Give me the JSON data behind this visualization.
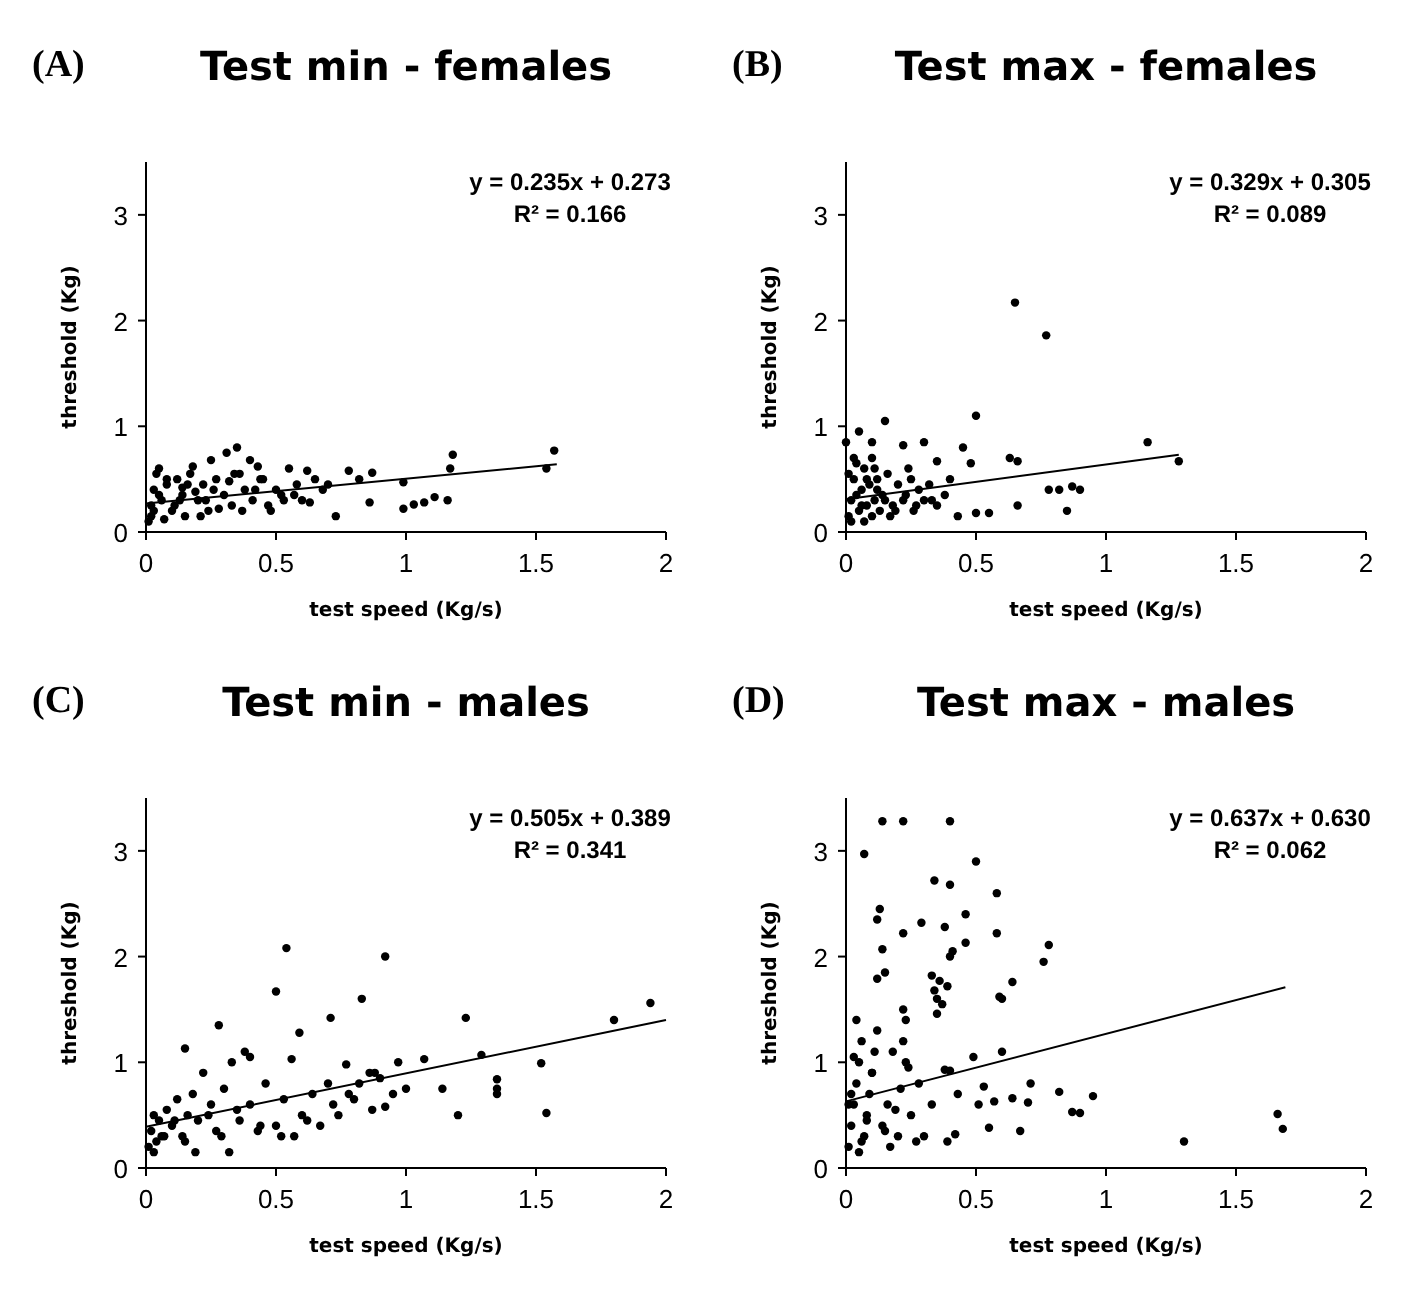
{
  "chart_data": [
    {
      "type": "scatter",
      "title": "Test min - females",
      "xlabel": "test speed  (Kg/s)",
      "ylabel": "threshold  (Kg)",
      "xlim": [
        0,
        2
      ],
      "ylim": [
        0,
        3.5
      ],
      "xticks": [
        0,
        0.5,
        1,
        1.5,
        2
      ],
      "yticks": [
        0,
        1,
        2,
        3
      ],
      "marker": "circle",
      "annotations": [
        "(A)",
        "y = 0.235x + 0.273",
        "R² = 0.166"
      ],
      "series": [
        {
          "type": "scatter",
          "color": "#000000",
          "x": [
            0.73,
            0.78,
            0.82,
            0.86,
            0.87,
            0.99,
            0.99,
            1.03,
            1.07,
            1.11,
            1.16,
            1.17,
            1.18,
            1.54,
            1.57,
            0.35,
            0.31,
            0.25,
            0.05,
            0.18,
            0.4,
            0.43,
            0.55,
            0.62,
            0.01,
            0.02,
            0.03,
            0.04,
            0.06,
            0.08,
            0.1,
            0.12,
            0.14,
            0.15,
            0.17,
            0.2,
            0.22,
            0.24,
            0.27,
            0.3,
            0.33,
            0.36,
            0.38,
            0.41,
            0.45,
            0.48,
            0.5,
            0.52,
            0.58,
            0.6,
            0.65,
            0.68,
            0.7,
            0.02,
            0.05,
            0.08,
            0.11,
            0.14,
            0.19,
            0.23,
            0.28,
            0.32,
            0.37,
            0.42,
            0.47,
            0.53,
            0.57,
            0.63,
            0.03,
            0.07,
            0.13,
            0.16,
            0.21,
            0.26,
            0.34,
            0.44
          ],
          "values": [
            0.15,
            0.58,
            0.5,
            0.28,
            0.56,
            0.47,
            0.22,
            0.26,
            0.28,
            0.33,
            0.3,
            0.6,
            0.73,
            0.6,
            0.77,
            0.8,
            0.75,
            0.68,
            0.6,
            0.62,
            0.68,
            0.62,
            0.6,
            0.58,
            0.1,
            0.25,
            0.4,
            0.55,
            0.3,
            0.45,
            0.2,
            0.5,
            0.35,
            0.15,
            0.55,
            0.3,
            0.45,
            0.2,
            0.5,
            0.35,
            0.25,
            0.55,
            0.4,
            0.3,
            0.5,
            0.2,
            0.4,
            0.35,
            0.45,
            0.3,
            0.5,
            0.4,
            0.45,
            0.15,
            0.35,
            0.5,
            0.25,
            0.42,
            0.38,
            0.3,
            0.22,
            0.48,
            0.2,
            0.4,
            0.25,
            0.3,
            0.35,
            0.28,
            0.2,
            0.12,
            0.3,
            0.45,
            0.15,
            0.4,
            0.55,
            0.5
          ]
        },
        {
          "type": "line",
          "color": "#000000",
          "marker": "none",
          "x": [
            0,
            1.58
          ],
          "values": [
            0.27,
            0.64
          ]
        }
      ]
    },
    {
      "type": "scatter",
      "title": "Test max - females",
      "xlabel": "test speed  (Kg/s)",
      "ylabel": "threshold  (Kg)",
      "xlim": [
        0,
        2
      ],
      "ylim": [
        0,
        3.5
      ],
      "xticks": [
        0,
        0.5,
        1,
        1.5,
        2
      ],
      "yticks": [
        0,
        1,
        2,
        3
      ],
      "marker": "circle",
      "annotations": [
        "(B)",
        "y = 0.329x + 0.305",
        "R² = 0.089"
      ],
      "series": [
        {
          "type": "scatter",
          "color": "#000000",
          "x": [
            0.65,
            0.77,
            0.5,
            0.15,
            0.05,
            1.16,
            1.28,
            0.85,
            0.9,
            0.87,
            0.82,
            0.78,
            0.66,
            0.66,
            0.63,
            0.45,
            0.48,
            0.55,
            0.5,
            0.43,
            0.0,
            0.1,
            0.22,
            0.3,
            0.35,
            0.01,
            0.02,
            0.03,
            0.04,
            0.05,
            0.06,
            0.07,
            0.08,
            0.09,
            0.1,
            0.11,
            0.12,
            0.13,
            0.14,
            0.16,
            0.18,
            0.2,
            0.22,
            0.24,
            0.26,
            0.28,
            0.3,
            0.32,
            0.35,
            0.38,
            0.4,
            0.02,
            0.04,
            0.06,
            0.08,
            0.1,
            0.12,
            0.15,
            0.19,
            0.23,
            0.27,
            0.33,
            0.01,
            0.03,
            0.07,
            0.11,
            0.17,
            0.25
          ],
          "values": [
            2.17,
            1.86,
            1.1,
            1.05,
            0.95,
            0.85,
            0.67,
            0.2,
            0.4,
            0.43,
            0.4,
            0.4,
            0.25,
            0.67,
            0.7,
            0.8,
            0.65,
            0.18,
            0.18,
            0.15,
            0.85,
            0.85,
            0.82,
            0.85,
            0.67,
            0.15,
            0.3,
            0.5,
            0.65,
            0.2,
            0.4,
            0.6,
            0.25,
            0.45,
            0.7,
            0.3,
            0.5,
            0.2,
            0.35,
            0.55,
            0.25,
            0.45,
            0.3,
            0.6,
            0.2,
            0.4,
            0.3,
            0.45,
            0.25,
            0.35,
            0.5,
            0.1,
            0.35,
            0.25,
            0.5,
            0.15,
            0.4,
            0.3,
            0.2,
            0.35,
            0.25,
            0.3,
            0.55,
            0.7,
            0.1,
            0.6,
            0.15,
            0.5
          ]
        },
        {
          "type": "line",
          "color": "#000000",
          "marker": "none",
          "x": [
            0,
            1.28
          ],
          "values": [
            0.31,
            0.73
          ]
        }
      ]
    },
    {
      "type": "scatter",
      "title": "Test min - males",
      "xlabel": "test speed  (Kg/s)",
      "ylabel": "threshold  (Kg)",
      "xlim": [
        0,
        2
      ],
      "ylim": [
        0,
        3.5
      ],
      "xticks": [
        0,
        0.5,
        1,
        1.5,
        2
      ],
      "yticks": [
        0,
        1,
        2,
        3
      ],
      "marker": "circle",
      "annotations": [
        "(C)",
        "y = 0.505x + 0.389",
        "R² = 0.341"
      ],
      "series": [
        {
          "type": "scatter",
          "color": "#000000",
          "x": [
            0.54,
            0.92,
            0.5,
            0.83,
            0.28,
            0.71,
            0.59,
            1.23,
            1.8,
            1.94,
            1.29,
            1.35,
            1.35,
            1.35,
            1.52,
            1.54,
            1.2,
            1.14,
            1.07,
            1.0,
            0.97,
            0.92,
            0.87,
            0.32,
            0.15,
            0.38,
            0.4,
            0.56,
            0.77,
            0.01,
            0.02,
            0.03,
            0.04,
            0.05,
            0.06,
            0.08,
            0.1,
            0.12,
            0.14,
            0.16,
            0.18,
            0.2,
            0.22,
            0.25,
            0.27,
            0.3,
            0.33,
            0.36,
            0.4,
            0.43,
            0.46,
            0.5,
            0.53,
            0.57,
            0.6,
            0.64,
            0.67,
            0.7,
            0.74,
            0.78,
            0.82,
            0.86,
            0.9,
            0.95,
            0.03,
            0.07,
            0.11,
            0.15,
            0.19,
            0.24,
            0.29,
            0.35,
            0.44,
            0.52,
            0.62,
            0.72,
            0.8,
            0.88
          ],
          "values": [
            2.08,
            2.0,
            1.67,
            1.6,
            1.35,
            1.42,
            1.28,
            1.42,
            1.4,
            1.56,
            1.07,
            0.84,
            0.75,
            0.7,
            0.99,
            0.52,
            0.5,
            0.75,
            1.03,
            0.75,
            1.0,
            0.58,
            0.55,
            0.15,
            1.13,
            1.1,
            1.05,
            1.03,
            0.98,
            0.2,
            0.35,
            0.5,
            0.25,
            0.45,
            0.3,
            0.55,
            0.4,
            0.65,
            0.3,
            0.5,
            0.7,
            0.45,
            0.9,
            0.6,
            0.35,
            0.75,
            1.0,
            0.45,
            0.6,
            0.35,
            0.8,
            0.4,
            0.65,
            0.3,
            0.5,
            0.7,
            0.4,
            0.8,
            0.5,
            0.7,
            0.8,
            0.9,
            0.85,
            0.7,
            0.15,
            0.3,
            0.45,
            0.25,
            0.15,
            0.5,
            0.3,
            0.55,
            0.4,
            0.3,
            0.45,
            0.6,
            0.65,
            0.9
          ]
        },
        {
          "type": "line",
          "color": "#000000",
          "marker": "none",
          "x": [
            0,
            2
          ],
          "values": [
            0.39,
            1.4
          ]
        }
      ]
    },
    {
      "type": "scatter",
      "title": "Test max - males",
      "xlabel": "test speed  (Kg/s)",
      "ylabel": "threshold  (Kg)",
      "xlim": [
        0,
        2
      ],
      "ylim": [
        0,
        3.5
      ],
      "xticks": [
        0,
        0.5,
        1,
        1.5,
        2
      ],
      "yticks": [
        0,
        1,
        2,
        3
      ],
      "marker": "circle",
      "annotations": [
        "(D)",
        "y = 0.637x + 0.630",
        "R² = 0.062"
      ],
      "series": [
        {
          "type": "scatter",
          "color": "#000000",
          "x": [
            0.14,
            0.22,
            0.4,
            0.07,
            0.5,
            0.34,
            0.4,
            0.58,
            0.13,
            0.12,
            0.29,
            0.38,
            0.46,
            0.22,
            0.58,
            0.46,
            0.41,
            0.4,
            0.14,
            0.78,
            0.76,
            0.15,
            0.12,
            0.33,
            0.36,
            0.39,
            0.64,
            0.34,
            0.35,
            0.37,
            0.35,
            0.6,
            0.59,
            0.22,
            0.23,
            0.6,
            0.49,
            1.3,
            1.66,
            1.68,
            0.95,
            0.9,
            0.87,
            0.82,
            0.71,
            0.7,
            0.67,
            0.64,
            0.57,
            0.55,
            0.51,
            0.53,
            0.43,
            0.42,
            0.39,
            0.38,
            0.4,
            0.01,
            0.02,
            0.03,
            0.04,
            0.05,
            0.06,
            0.07,
            0.08,
            0.09,
            0.1,
            0.12,
            0.14,
            0.16,
            0.18,
            0.2,
            0.22,
            0.25,
            0.28,
            0.3,
            0.33,
            0.02,
            0.04,
            0.06,
            0.08,
            0.11,
            0.15,
            0.19,
            0.24,
            0.27,
            0.01,
            0.03,
            0.05,
            0.1,
            0.17,
            0.21,
            0.23
          ],
          "values": [
            3.28,
            3.28,
            3.28,
            2.97,
            2.9,
            2.72,
            2.68,
            2.6,
            2.45,
            2.35,
            2.32,
            2.28,
            2.4,
            2.22,
            2.22,
            2.13,
            2.05,
            2.0,
            2.07,
            2.11,
            1.95,
            1.85,
            1.79,
            1.82,
            1.77,
            1.72,
            1.76,
            1.68,
            1.6,
            1.55,
            1.46,
            1.6,
            1.62,
            1.5,
            1.4,
            1.1,
            1.05,
            0.25,
            0.51,
            0.37,
            0.68,
            0.52,
            0.53,
            0.72,
            0.8,
            0.62,
            0.35,
            0.66,
            0.63,
            0.38,
            0.6,
            0.77,
            0.7,
            0.32,
            0.25,
            0.93,
            0.92,
            0.2,
            0.4,
            0.6,
            0.8,
            1.0,
            1.2,
            0.3,
            0.5,
            0.7,
            0.9,
            1.3,
            0.4,
            0.6,
            1.1,
            0.3,
            1.2,
            0.5,
            0.8,
            0.3,
            0.6,
            0.7,
            1.4,
            0.25,
            0.45,
            1.1,
            0.35,
            0.55,
            0.95,
            0.25,
            0.6,
            1.05,
            0.15,
            0.9,
            0.2,
            0.75,
            1.0
          ]
        },
        {
          "type": "line",
          "color": "#000000",
          "marker": "none",
          "x": [
            0,
            1.69
          ],
          "values": [
            0.63,
            1.71
          ]
        }
      ]
    }
  ]
}
